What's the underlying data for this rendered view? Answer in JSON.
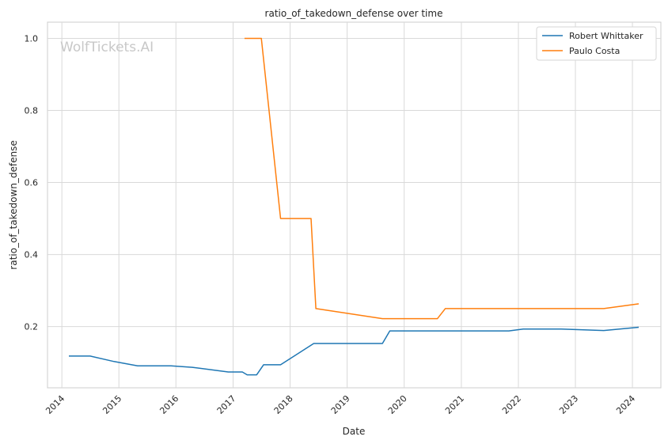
{
  "chart_data": {
    "type": "line",
    "title": "ratio_of_takedown_defense over time",
    "xlabel": "Date",
    "ylabel": "ratio_of_takedown_defense",
    "watermark": "WolfTickets.AI",
    "x_ticks": [
      "2014",
      "2015",
      "2016",
      "2017",
      "2018",
      "2019",
      "2020",
      "2021",
      "2022",
      "2023",
      "2024"
    ],
    "y_ticks": [
      "0.2",
      "0.4",
      "0.6",
      "0.8",
      "1.0"
    ],
    "xlim": [
      "2013-10-01",
      "2024-07-01"
    ],
    "ylim": [
      0.03,
      1.045
    ],
    "grid": true,
    "legend_position": "top-right",
    "series": [
      {
        "name": "Robert Whittaker",
        "color": "#1f77b4",
        "points": [
          [
            "2014-02-15",
            0.118
          ],
          [
            "2014-07-01",
            0.118
          ],
          [
            "2014-12-01",
            0.103
          ],
          [
            "2015-05-01",
            0.091
          ],
          [
            "2015-12-01",
            0.091
          ],
          [
            "2016-04-15",
            0.087
          ],
          [
            "2016-12-01",
            0.074
          ],
          [
            "2017-03-01",
            0.074
          ],
          [
            "2017-04-01",
            0.066
          ],
          [
            "2017-06-01",
            0.066
          ],
          [
            "2017-07-15",
            0.094
          ],
          [
            "2017-11-01",
            0.094
          ],
          [
            "2018-06-01",
            0.153
          ],
          [
            "2019-08-15",
            0.153
          ],
          [
            "2019-10-01",
            0.188
          ],
          [
            "2021-11-01",
            0.188
          ],
          [
            "2022-02-01",
            0.193
          ],
          [
            "2022-10-01",
            0.193
          ],
          [
            "2023-07-01",
            0.189
          ],
          [
            "2024-02-10",
            0.198
          ]
        ]
      },
      {
        "name": "Paulo Costa",
        "color": "#ff7f0e",
        "points": [
          [
            "2017-03-15",
            1.0
          ],
          [
            "2017-07-01",
            1.0
          ],
          [
            "2017-11-01",
            0.5
          ],
          [
            "2018-05-15",
            0.5
          ],
          [
            "2018-06-15",
            0.25
          ],
          [
            "2019-08-15",
            0.222
          ],
          [
            "2020-08-01",
            0.222
          ],
          [
            "2020-09-20",
            0.25
          ],
          [
            "2023-07-01",
            0.25
          ],
          [
            "2024-02-10",
            0.263
          ]
        ]
      }
    ]
  }
}
